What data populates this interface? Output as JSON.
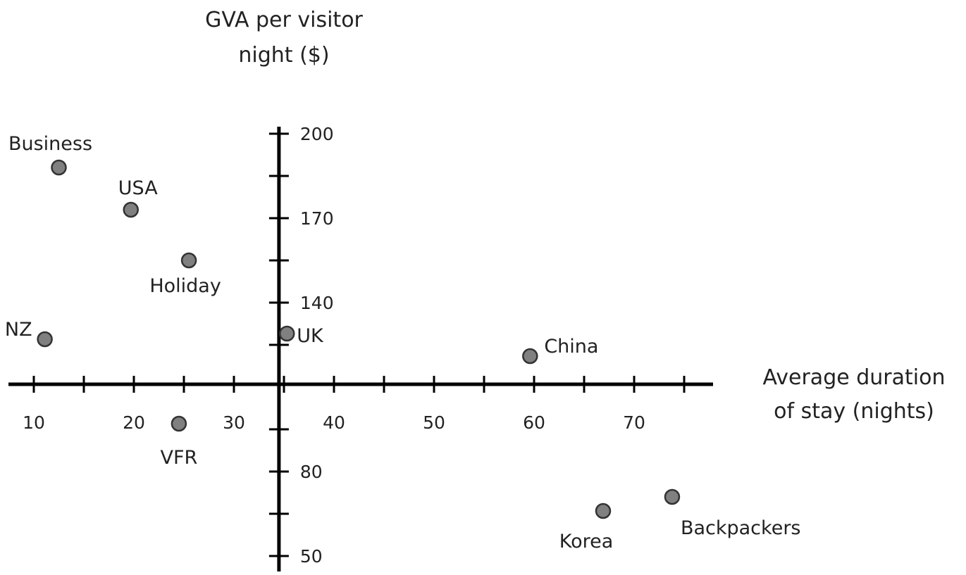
{
  "chart_data": {
    "type": "scatter",
    "title": "",
    "xlabel": [
      "Average duration",
      "of stay (nights)"
    ],
    "ylabel": [
      "GVA per visitor",
      "night ($)"
    ],
    "x_ticks": [
      "10",
      "20",
      "30",
      "40",
      "50",
      "60",
      "70"
    ],
    "y_ticks": [
      "200",
      "170",
      "140",
      "80",
      "50"
    ],
    "axes_cross": {
      "x": 34.5,
      "y": 111
    },
    "grid": false,
    "marker_color": "#808080",
    "series": [
      {
        "points": [
          {
            "label": "Business",
            "x": 12.5,
            "y": 188
          },
          {
            "label": "USA",
            "x": 19.7,
            "y": 173
          },
          {
            "label": "Holiday",
            "x": 25.5,
            "y": 155
          },
          {
            "label": "NZ",
            "x": 11.1,
            "y": 127
          },
          {
            "label": "UK",
            "x": 35.3,
            "y": 129
          },
          {
            "label": "China",
            "x": 59.6,
            "y": 121
          },
          {
            "label": "VFR",
            "x": 24.5,
            "y": 97
          },
          {
            "label": "Korea",
            "x": 66.9,
            "y": 66
          },
          {
            "label": "Backpackers",
            "x": 73.8,
            "y": 71
          }
        ]
      }
    ]
  }
}
